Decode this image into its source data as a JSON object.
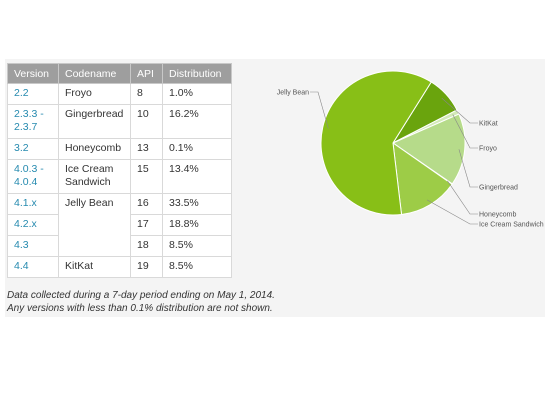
{
  "table": {
    "headers": [
      "Version",
      "Codename",
      "API",
      "Distribution"
    ],
    "rows": [
      {
        "version": "2.2",
        "codename": "Froyo",
        "api": "8",
        "distribution": "1.0%"
      },
      {
        "version": "2.3.3 -\n2.3.7",
        "codename": "Gingerbread",
        "api": "10",
        "distribution": "16.2%"
      },
      {
        "version": "3.2",
        "codename": "Honeycomb",
        "api": "13",
        "distribution": "0.1%"
      },
      {
        "version": "4.0.3 -\n4.0.4",
        "codename": "Ice Cream\nSandwich",
        "api": "15",
        "distribution": "13.4%"
      },
      {
        "version": "4.1.x",
        "codename": "Jelly Bean",
        "api": "16",
        "distribution": "33.5%"
      },
      {
        "version": "4.2.x",
        "codename": "",
        "api": "17",
        "distribution": "18.8%"
      },
      {
        "version": "4.3",
        "codename": "",
        "api": "18",
        "distribution": "8.5%"
      },
      {
        "version": "4.4",
        "codename": "KitKat",
        "api": "19",
        "distribution": "8.5%"
      }
    ]
  },
  "notes": {
    "line1": "Data collected during a 7-day period ending on May 1, 2014.",
    "line2": "Any versions with less than 0.1% distribution are not shown."
  },
  "chart_data": {
    "type": "pie",
    "slices": [
      {
        "label": "KitKat",
        "value": 8.5,
        "color": "#6aa40d"
      },
      {
        "label": "Froyo",
        "value": 1.0,
        "color": "#d3eab8"
      },
      {
        "label": "Gingerbread",
        "value": 16.2,
        "color": "#b6db8a"
      },
      {
        "label": "Honeycomb",
        "value": 0.1,
        "color": "#b8dc8c"
      },
      {
        "label": "Ice Cream Sandwich",
        "value": 13.4,
        "color": "#9dcc47"
      },
      {
        "label": "Jelly Bean",
        "value": 60.8,
        "color": "#88bf17"
      }
    ]
  }
}
